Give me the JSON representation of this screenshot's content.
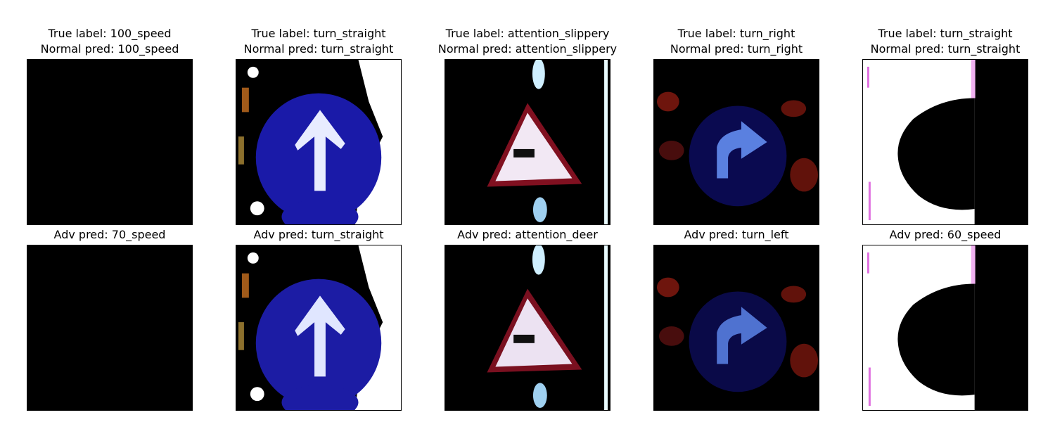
{
  "figure": {
    "columns": [
      {
        "true_label": "True label: 100_speed",
        "normal_pred": "Normal pred: 100_speed",
        "adv_pred": "Adv pred: 70_speed",
        "image": "black-sign-image"
      },
      {
        "true_label": "True label: turn_straight",
        "normal_pred": "Normal pred: turn_straight",
        "adv_pred": "Adv pred: turn_straight",
        "image": "blue-circle-up-arrow-sign"
      },
      {
        "true_label": "True label: attention_slippery",
        "normal_pred": "Normal pred: attention_slippery",
        "adv_pred": "Adv pred: attention_deer",
        "image": "red-triangle-warning-sign"
      },
      {
        "true_label": "True label: turn_right",
        "normal_pred": "Normal pred: turn_right",
        "adv_pred": "Adv pred: turn_left",
        "image": "dark-turn-right-sign"
      },
      {
        "true_label": "True label: turn_straight",
        "normal_pred": "Normal pred: turn_straight",
        "adv_pred": "Adv pred: 60_speed",
        "image": "white-black-semicircle-image"
      }
    ],
    "colors": {
      "background": "#ffffff",
      "image_black": "#000000",
      "sign_blue": "#1515a0",
      "warning_red": "#8a1020",
      "overexposed_white": "#ffffff"
    }
  }
}
